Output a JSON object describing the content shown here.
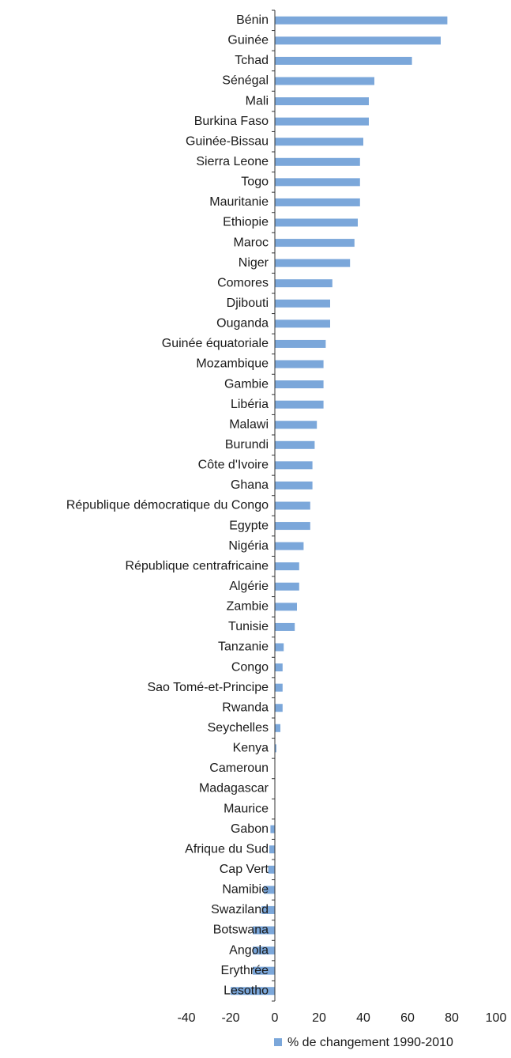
{
  "chart_data": {
    "type": "barh",
    "categories": [
      "Bénin",
      "Guinée",
      "Tchad",
      "Sénégal",
      "Mali",
      "Burkina Faso",
      "Guinée-Bissau",
      "Sierra Leone",
      "Togo",
      "Mauritanie",
      "Ethiopie",
      "Maroc",
      "Niger",
      "Comores",
      "Djibouti",
      "Ouganda",
      "Guinée équatoriale",
      "Mozambique",
      "Gambie",
      "Libéria",
      "Malawi",
      "Burundi",
      "Côte d'Ivoire",
      "Ghana",
      "République démocratique du Congo",
      "Egypte",
      "Nigéria",
      "République centrafricaine",
      "Algérie",
      "Zambie",
      "Tunisie",
      "Tanzanie",
      "Congo",
      "Sao Tomé-et-Principe",
      "Rwanda",
      "Seychelles",
      "Kenya",
      "Cameroun",
      "Madagascar",
      "Maurice",
      "Gabon",
      "Afrique du Sud",
      "Cap Vert",
      "Namibie",
      "Swaziland",
      "Botswana",
      "Angola",
      "Erythrée",
      "Lesotho"
    ],
    "series": [
      {
        "name": "% de changement 1990-2010",
        "color": "#7ba7da",
        "values": [
          78,
          75,
          62,
          45,
          42.5,
          42.5,
          40,
          38.5,
          38.5,
          38.5,
          37.5,
          36,
          34,
          26,
          25,
          25,
          23,
          22,
          22,
          22,
          19,
          18,
          17,
          17,
          16,
          16,
          13,
          11,
          11,
          10,
          9,
          4,
          3.5,
          3.5,
          3.5,
          2.5,
          0.7,
          0,
          0,
          0,
          -2,
          -2.5,
          -3,
          -5,
          -6,
          -10,
          -10,
          -10,
          -20
        ]
      }
    ],
    "xlim": [
      -40,
      100
    ],
    "xticks": [
      -40,
      -20,
      0,
      20,
      40,
      60,
      80,
      100
    ],
    "legend": "bottom"
  }
}
